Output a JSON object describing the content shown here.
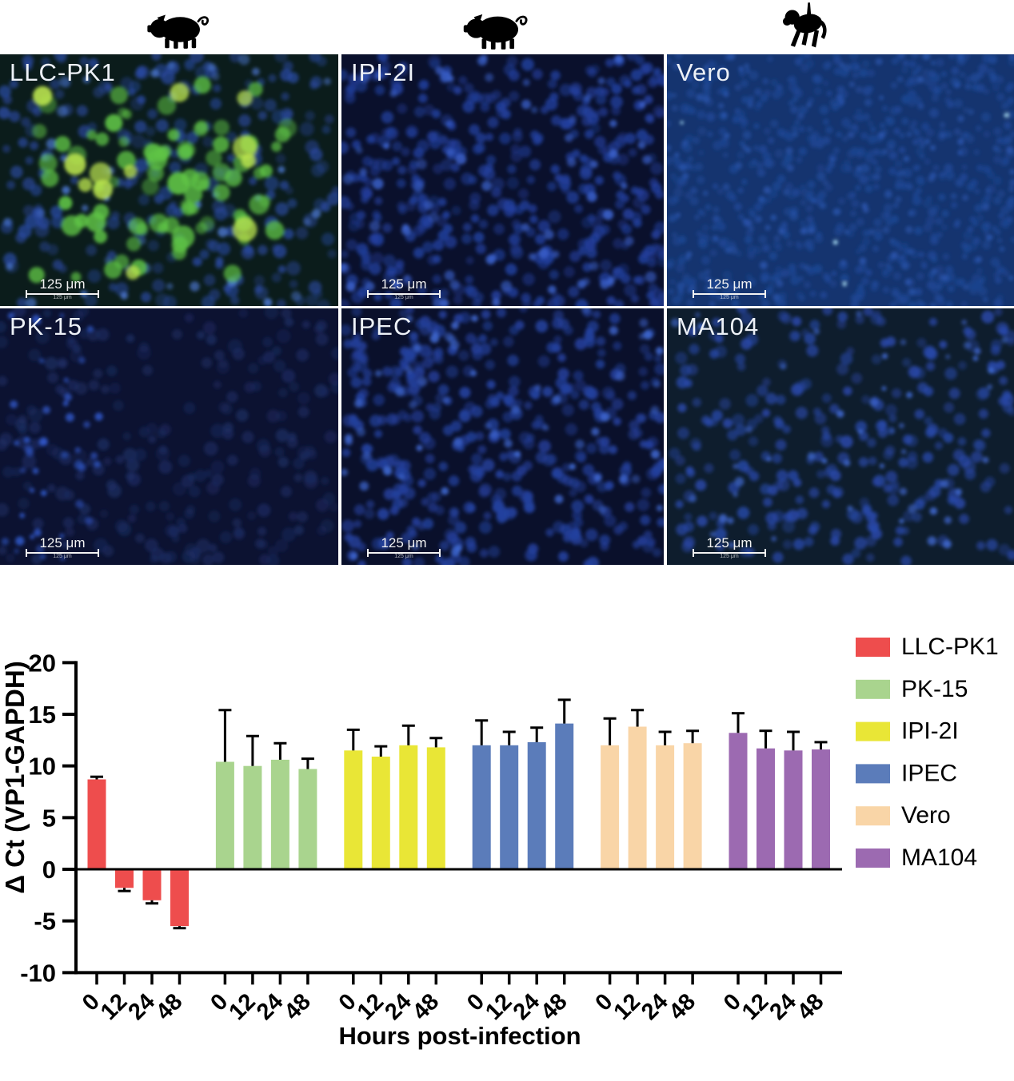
{
  "species_icons": [
    {
      "name": "pig",
      "label": "pig-silhouette"
    },
    {
      "name": "pig",
      "label": "pig-silhouette"
    },
    {
      "name": "monkey",
      "label": "monkey-silhouette"
    }
  ],
  "panels": [
    {
      "label": "LLC-PK1",
      "species": "pig",
      "scale_bar": "125 μm",
      "scale_bar_small": "125 μm",
      "colors": {
        "bg": "#0b1c1b",
        "nucleus": "#2a4aa3",
        "highlight": "#4d79d4",
        "infected": "#5fc446",
        "infected_bright": "#b9e24e"
      }
    },
    {
      "label": "IPI-2I",
      "species": "pig",
      "scale_bar": "125 μm",
      "scale_bar_small": "125 μm",
      "colors": {
        "bg": "#0a102c",
        "nucleus": "#22409f",
        "highlight": "#3c63cf"
      }
    },
    {
      "label": "Vero",
      "species": "monkey",
      "scale_bar": "125 μm",
      "scale_bar_small": "125 μm",
      "colors": {
        "bg": "#15346f",
        "nucleus": "#1d4795",
        "highlight": "#2a55ad",
        "speck": "#a8dcf2"
      }
    },
    {
      "label": "PK-15",
      "species": "pig",
      "scale_bar": "125 μm",
      "scale_bar_small": "125 μm",
      "colors": {
        "bg": "#0c1231",
        "nucleus": "#1d2e66",
        "highlight": "#2f55c4"
      }
    },
    {
      "label": "IPEC",
      "species": "pig",
      "scale_bar": "125 μm",
      "scale_bar_small": "125 μm",
      "colors": {
        "bg": "#0a102b",
        "nucleus": "#24419f",
        "highlight": "#3f68d2"
      }
    },
    {
      "label": "MA104",
      "species": "monkey",
      "scale_bar": "125 μm",
      "scale_bar_small": "125 μm",
      "colors": {
        "bg": "#0e1d2d",
        "nucleus": "#2949ac",
        "highlight": "#3e66cc"
      }
    }
  ],
  "chart_data": {
    "type": "bar",
    "categories": [
      "0",
      "12",
      "24",
      "48"
    ],
    "series": [
      {
        "name": "LLC-PK1",
        "color": "#ee4d4d",
        "values": [
          8.7,
          -1.8,
          -3.0,
          -5.5
        ],
        "errors": [
          0.25,
          0.3,
          0.3,
          0.2
        ]
      },
      {
        "name": "PK-15",
        "color": "#a9d48e",
        "values": [
          10.4,
          10.0,
          10.6,
          9.7
        ],
        "errors": [
          5.0,
          2.9,
          1.6,
          1.0
        ]
      },
      {
        "name": "IPI-2I",
        "color": "#e9e636",
        "values": [
          11.5,
          10.9,
          12.0,
          11.8
        ],
        "errors": [
          2.0,
          1.0,
          1.9,
          0.9
        ]
      },
      {
        "name": "IPEC",
        "color": "#5b7cba",
        "values": [
          12.0,
          12.0,
          12.3,
          14.1
        ],
        "errors": [
          2.4,
          1.3,
          1.4,
          2.3
        ]
      },
      {
        "name": "Vero",
        "color": "#f9d5a7",
        "values": [
          12.0,
          13.8,
          12.0,
          12.2
        ],
        "errors": [
          2.6,
          1.6,
          1.3,
          1.2
        ]
      },
      {
        "name": "MA104",
        "color": "#9c6ab1",
        "values": [
          13.2,
          11.7,
          11.5,
          11.6
        ],
        "errors": [
          1.9,
          1.7,
          1.8,
          0.7
        ]
      }
    ],
    "title": "",
    "xlabel": "Hours post-infection",
    "ylabel": "Δ Ct (VP1-GAPDH)",
    "ylim": [
      -10,
      20
    ],
    "yticks": [
      20,
      15,
      10,
      5,
      0,
      -5,
      -10
    ],
    "legend_position": "right",
    "grid": false
  }
}
